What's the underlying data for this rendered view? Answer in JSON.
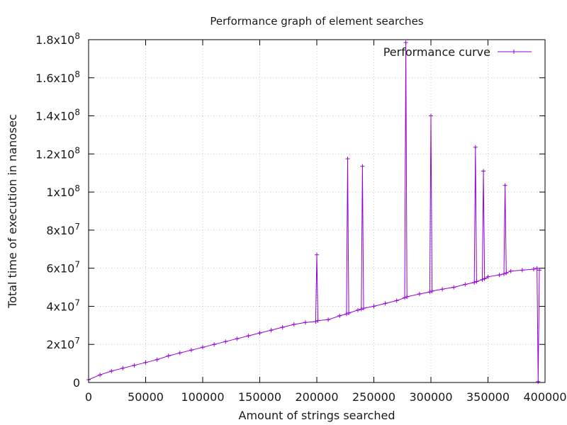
{
  "chart_data": {
    "type": "line",
    "title": "Performance graph of element searches",
    "xlabel": "Amount of strings searched",
    "ylabel": "Total time of execution in nanosec",
    "xlim": [
      0,
      400000
    ],
    "ylim": [
      0,
      180000000
    ],
    "grid": true,
    "legend": "top-right",
    "x_ticks": [
      {
        "value": 0,
        "label": "0"
      },
      {
        "value": 50000,
        "label": "50000"
      },
      {
        "value": 100000,
        "label": "100000"
      },
      {
        "value": 150000,
        "label": "150000"
      },
      {
        "value": 200000,
        "label": "200000"
      },
      {
        "value": 250000,
        "label": "250000"
      },
      {
        "value": 300000,
        "label": "300000"
      },
      {
        "value": 350000,
        "label": "350000"
      },
      {
        "value": 400000,
        "label": "400000"
      }
    ],
    "y_ticks": [
      {
        "value": 0,
        "mantissa": "0",
        "exp": ""
      },
      {
        "value": 20000000,
        "mantissa": "2x10",
        "exp": "7"
      },
      {
        "value": 40000000,
        "mantissa": "4x10",
        "exp": "7"
      },
      {
        "value": 60000000,
        "mantissa": "6x10",
        "exp": "7"
      },
      {
        "value": 80000000,
        "mantissa": "8x10",
        "exp": "7"
      },
      {
        "value": 100000000,
        "mantissa": "1x10",
        "exp": "8"
      },
      {
        "value": 120000000,
        "mantissa": "1.2x10",
        "exp": "8"
      },
      {
        "value": 140000000,
        "mantissa": "1.4x10",
        "exp": "8"
      },
      {
        "value": 160000000,
        "mantissa": "1.6x10",
        "exp": "8"
      },
      {
        "value": 180000000,
        "mantissa": "1.8x10",
        "exp": "8"
      }
    ],
    "series": [
      {
        "name": "Performance curve",
        "color": "#9400d3",
        "marker": "plus",
        "x": [
          0,
          10000,
          20000,
          30000,
          40000,
          50000,
          60000,
          70000,
          80000,
          90000,
          100000,
          110000,
          120000,
          130000,
          140000,
          150000,
          160000,
          170000,
          180000,
          190000,
          199000,
          200000,
          201000,
          210000,
          220000,
          226000,
          227000,
          228000,
          236000,
          239000,
          240000,
          241000,
          250000,
          260000,
          270000,
          277000,
          278000,
          279000,
          290000,
          299000,
          300000,
          301000,
          310000,
          320000,
          330000,
          338000,
          339000,
          340000,
          345000,
          346000,
          347000,
          350000,
          360000,
          364000,
          365000,
          366000,
          370000,
          380000,
          390000,
          393000,
          394000,
          395000
        ],
        "y": [
          1500000,
          4000000,
          6000000,
          7500000,
          9000000,
          10500000,
          12000000,
          14000000,
          15500000,
          17000000,
          18500000,
          20000000,
          21500000,
          23000000,
          24500000,
          26000000,
          27500000,
          29000000,
          30500000,
          31500000,
          32000000,
          67000000,
          32500000,
          33000000,
          35000000,
          36000000,
          117500000,
          36500000,
          38000000,
          38500000,
          113500000,
          39000000,
          40000000,
          41500000,
          43000000,
          44500000,
          178500000,
          45000000,
          46500000,
          47500000,
          140000000,
          48000000,
          49000000,
          50000000,
          51500000,
          52500000,
          123500000,
          53000000,
          54000000,
          111000000,
          54500000,
          55500000,
          56500000,
          57000000,
          103500000,
          57500000,
          58500000,
          59000000,
          59500000,
          60000000,
          500000,
          59000000
        ]
      }
    ]
  }
}
